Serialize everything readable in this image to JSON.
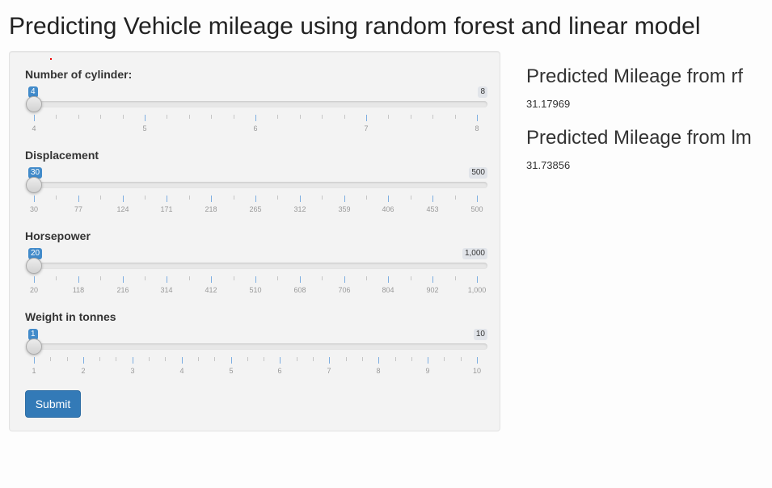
{
  "page": {
    "title": "Predicting Vehicle mileage using random forest and linear model"
  },
  "sliders": [
    {
      "label": "Number of cylinder:",
      "value": "4",
      "max_label": "8",
      "position": 0,
      "ticks": [
        "4",
        "5",
        "6",
        "7",
        "8"
      ],
      "minor_per_major": 5
    },
    {
      "label": "Displacement",
      "value": "30",
      "max_label": "500",
      "position": 0,
      "ticks": [
        "30",
        "77",
        "124",
        "171",
        "218",
        "265",
        "312",
        "359",
        "406",
        "453",
        "500"
      ],
      "minor_per_major": 2
    },
    {
      "label": "Horsepower",
      "value": "20",
      "max_label": "1,000",
      "position": 0,
      "ticks": [
        "20",
        "118",
        "216",
        "314",
        "412",
        "510",
        "608",
        "706",
        "804",
        "902",
        "1,000"
      ],
      "minor_per_major": 2
    },
    {
      "label": "Weight in tonnes",
      "value": "1",
      "max_label": "10",
      "position": 0,
      "ticks": [
        "1",
        "2",
        "3",
        "4",
        "5",
        "6",
        "7",
        "8",
        "9",
        "10"
      ],
      "minor_per_major": 3
    }
  ],
  "submit": {
    "label": "Submit"
  },
  "predictions": {
    "rf": {
      "title": "Predicted Mileage from rf",
      "value": "31.17969"
    },
    "lm": {
      "title": "Predicted Mileage from lm",
      "value": "31.73856"
    }
  },
  "colors": {
    "accent": "#428bca",
    "button": "#337ab7",
    "panel": "#f3f3f3"
  }
}
